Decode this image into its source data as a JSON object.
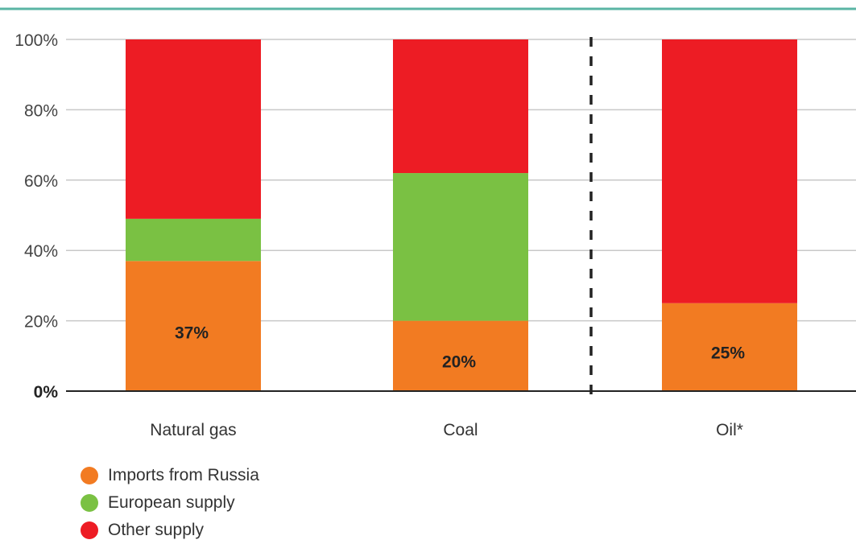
{
  "chart_data": {
    "type": "bar",
    "stacked": true,
    "percent": true,
    "categories": [
      "Natural gas",
      "Coal",
      "Oil*"
    ],
    "series": [
      {
        "name": "Imports from Russia",
        "color": "#f27b22",
        "values": [
          37,
          20,
          25
        ]
      },
      {
        "name": "European supply",
        "color": "#7ac143",
        "values": [
          12,
          42,
          0
        ]
      },
      {
        "name": "Other supply",
        "color": "#ed1c24",
        "values": [
          51,
          38,
          75
        ]
      }
    ],
    "data_labels": [
      "37%",
      "20%",
      "25%"
    ],
    "y_ticks": [
      "0%",
      "20%",
      "40%",
      "60%",
      "80%",
      "100%"
    ],
    "ylim": [
      0,
      100
    ],
    "grid": true,
    "divider_between": [
      "Coal",
      "Oil*"
    ],
    "legend_position": "bottom-left",
    "header_rule_color": "#5ab5a4"
  }
}
